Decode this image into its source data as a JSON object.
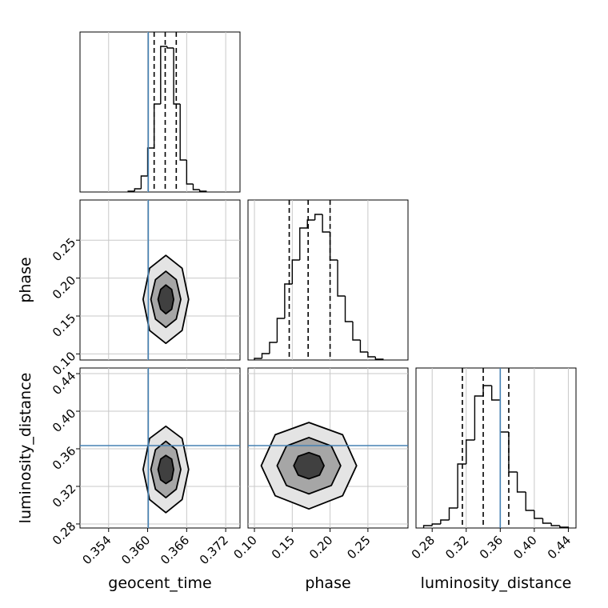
{
  "chart_data": [
    {
      "type": "histogram",
      "bins": [
        0.357,
        0.358,
        0.359,
        0.36,
        0.361,
        0.362,
        0.363,
        0.364,
        0.365,
        0.366,
        0.367,
        0.368,
        0.369
      ],
      "values": [
        1,
        4,
        20,
        55,
        110,
        182,
        180,
        110,
        40,
        10,
        3,
        1
      ],
      "ylim": [
        0,
        200
      ],
      "quantiles": [
        0.361,
        0.3627,
        0.3644
      ],
      "truth": 0.3601,
      "color": "#000000",
      "truth_color": "#4682b4",
      "grid": true
    },
    {
      "type": "contour",
      "truth_x": 0.3601,
      "truth_color": "#4682b4",
      "grid": true,
      "ylim": [
        0.092,
        0.303
      ],
      "yticks": [
        {
          "value": 0.1,
          "label": "0.10"
        },
        0.15,
        {
          "value": 0.2,
          "label": "0.20"
        },
        0.25
      ],
      "ylabel": "phase",
      "contours": [
        {
          "color": "#e4e4e4",
          "x": [
            0.3663,
            0.3653,
            0.3628,
            0.3603,
            0.3593,
            0.3603,
            0.3628,
            0.3653
          ],
          "y": [
            0.172,
            0.213,
            0.23,
            0.213,
            0.172,
            0.131,
            0.114,
            0.131
          ]
        },
        {
          "color": "#a6a6a6",
          "x": [
            0.3651,
            0.3644,
            0.3628,
            0.3612,
            0.3605,
            0.3612,
            0.3628,
            0.3644
          ],
          "y": [
            0.172,
            0.198,
            0.209,
            0.198,
            0.172,
            0.146,
            0.135,
            0.146
          ]
        },
        {
          "color": "#404040",
          "x": [
            0.364,
            0.3637,
            0.3628,
            0.362,
            0.3616,
            0.362,
            0.3628,
            0.3637
          ],
          "y": [
            0.172,
            0.185,
            0.191,
            0.185,
            0.172,
            0.159,
            0.153,
            0.159
          ]
        }
      ]
    },
    {
      "type": "histogram",
      "bins": [
        0.1,
        0.11,
        0.12,
        0.13,
        0.14,
        0.15,
        0.16,
        0.17,
        0.18,
        0.19,
        0.2,
        0.21,
        0.22,
        0.23,
        0.24,
        0.25,
        0.26,
        0.27
      ],
      "values": [
        2,
        8,
        22,
        52,
        95,
        125,
        165,
        175,
        182,
        160,
        125,
        80,
        48,
        25,
        10,
        4,
        1
      ],
      "ylim": [
        0,
        200
      ],
      "quantiles": [
        0.146,
        0.171,
        0.2
      ],
      "color": "#000000",
      "grid": true
    },
    {
      "type": "contour",
      "truth_x": 0.3601,
      "truth_y": 0.3634,
      "truth_color": "#4682b4",
      "grid": true,
      "xlim": [
        0.3496,
        0.3742
      ],
      "xticks": [
        0.354,
        {
          "value": 0.36,
          "label": "0.360"
        },
        0.366,
        0.372
      ],
      "xlabel": "geocent_time",
      "ylim": [
        0.2757,
        0.446
      ],
      "yticks": [
        0.28,
        0.32,
        0.36,
        {
          "value": 0.4,
          "label": "0.40"
        },
        0.44
      ],
      "ylabel": "luminosity_distance",
      "contours": [
        {
          "color": "#e4e4e4",
          "x": [
            0.3663,
            0.3653,
            0.3628,
            0.3603,
            0.3593,
            0.3603,
            0.3628,
            0.3653
          ],
          "y": [
            0.338,
            0.371,
            0.384,
            0.371,
            0.338,
            0.306,
            0.292,
            0.306
          ]
        },
        {
          "color": "#a6a6a6",
          "x": [
            0.3651,
            0.3644,
            0.3628,
            0.3612,
            0.3605,
            0.3612,
            0.3628,
            0.3644
          ],
          "y": [
            0.338,
            0.359,
            0.368,
            0.359,
            0.338,
            0.317,
            0.308,
            0.317
          ]
        },
        {
          "color": "#404040",
          "x": [
            0.364,
            0.3637,
            0.3628,
            0.362,
            0.3616,
            0.362,
            0.3628,
            0.3637
          ],
          "y": [
            0.338,
            0.349,
            0.353,
            0.349,
            0.338,
            0.327,
            0.323,
            0.327
          ]
        }
      ]
    },
    {
      "type": "contour",
      "truth_y": 0.3634,
      "truth_color": "#4682b4",
      "grid": true,
      "xlim": [
        0.0915,
        0.303
      ],
      "xticks": [
        {
          "value": 0.1,
          "label": "0.10"
        },
        0.15,
        {
          "value": 0.2,
          "label": "0.20"
        },
        0.25
      ],
      "xlabel": "phase",
      "contours": [
        {
          "color": "#e4e4e4",
          "x": [
            0.235,
            0.2165,
            0.172,
            0.1275,
            0.109,
            0.1275,
            0.172,
            0.2165
          ],
          "y": [
            0.342,
            0.375,
            0.388,
            0.375,
            0.342,
            0.31,
            0.296,
            0.31
          ]
        },
        {
          "color": "#a6a6a6",
          "x": [
            0.214,
            0.2017,
            0.172,
            0.1423,
            0.13,
            0.1423,
            0.172,
            0.2017
          ],
          "y": [
            0.342,
            0.363,
            0.372,
            0.363,
            0.342,
            0.321,
            0.312,
            0.321
          ]
        },
        {
          "color": "#404040",
          "x": [
            0.192,
            0.1861,
            0.172,
            0.1579,
            0.152,
            0.1579,
            0.172,
            0.1861
          ],
          "y": [
            0.342,
            0.352,
            0.356,
            0.352,
            0.342,
            0.332,
            0.328,
            0.332
          ]
        }
      ]
    },
    {
      "type": "histogram",
      "bins": [
        0.27,
        0.28,
        0.29,
        0.3,
        0.31,
        0.32,
        0.33,
        0.34,
        0.35,
        0.36,
        0.37,
        0.38,
        0.39,
        0.4,
        0.41,
        0.42,
        0.43,
        0.44
      ],
      "values": [
        3,
        5,
        10,
        25,
        80,
        110,
        165,
        178,
        160,
        120,
        70,
        45,
        22,
        12,
        6,
        3,
        1
      ],
      "ylim": [
        0,
        200
      ],
      "quantiles": [
        0.3155,
        0.34,
        0.37
      ],
      "truth": 0.36,
      "color": "#000000",
      "truth_color": "#4682b4",
      "grid": true,
      "xlim": [
        0.261,
        0.449
      ],
      "xticks": [
        0.28,
        0.32,
        0.36,
        {
          "value": 0.4,
          "label": "0.40"
        },
        0.44
      ],
      "xlabel": "luminosity_distance"
    }
  ]
}
